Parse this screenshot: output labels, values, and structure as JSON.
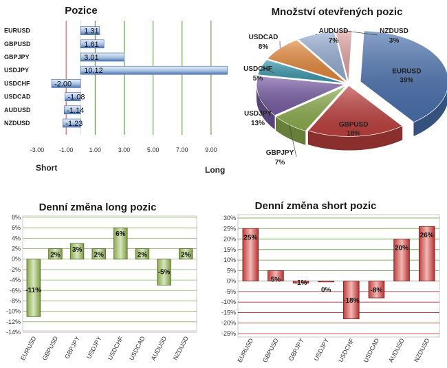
{
  "chart_data": [
    {
      "id": "positions",
      "type": "bar",
      "orientation": "horizontal",
      "title": "Pozice",
      "categories": [
        "EURUSD",
        "GBPUSD",
        "GBPJPY",
        "USDJPY",
        "USDCHF",
        "USDCAD",
        "AUDUSD",
        "NZDUSD"
      ],
      "values": [
        1.31,
        1.61,
        3.01,
        10.12,
        -2.0,
        -1.08,
        -1.14,
        -1.23
      ],
      "value_labels": [
        "1.31",
        "1.61",
        "3.01",
        "10.12",
        "-2.00",
        "-1.08",
        "-1.14",
        "-1.23"
      ],
      "xticks": [
        "-3.00",
        "-1.00",
        "1.00",
        "3.00",
        "5.00",
        "7.00",
        "9.00"
      ],
      "xlim": [
        -3,
        10
      ],
      "left_label": "Short",
      "right_label": "Long",
      "colors": {
        "bar": "#5b86bd",
        "bar_light": "#e8f0fb",
        "neg_line": "#c0504d",
        "pos_line": "#3c7a2a"
      }
    },
    {
      "id": "open_positions",
      "type": "pie",
      "title": "Množství otevřených pozic",
      "slices": [
        {
          "label": "EURUSD",
          "pct": "39%",
          "value": 39,
          "color": "#4a72b0"
        },
        {
          "label": "GBPUSD",
          "pct": "18%",
          "value": 18,
          "color": "#c0413f"
        },
        {
          "label": "GBPJPY",
          "pct": "7%",
          "value": 7,
          "color": "#8fb04e"
        },
        {
          "label": "USDJPY",
          "pct": "13%",
          "value": 13,
          "color": "#7a5ea6"
        },
        {
          "label": "USDCHF",
          "pct": "5%",
          "value": 5,
          "color": "#3c9bb0"
        },
        {
          "label": "USDCAD",
          "pct": "8%",
          "value": 8,
          "color": "#e88a3c"
        },
        {
          "label": "AUDUSD",
          "pct": "7%",
          "value": 7,
          "color": "#98b0d6"
        },
        {
          "label": "NZDUSD",
          "pct": "3%",
          "value": 3,
          "color": "#e6a5a5"
        }
      ]
    },
    {
      "id": "long_change",
      "type": "bar",
      "title": "Denní změna long pozic",
      "categories": [
        "EURUSD",
        "GBPUSD",
        "GBPJPY",
        "USDJPY",
        "USDCHF",
        "USDCAD",
        "AUDUSD",
        "NZDUSD"
      ],
      "values": [
        -11,
        2,
        3,
        2,
        6,
        2,
        -5,
        2
      ],
      "value_labels": [
        "-11%",
        "2%",
        "3%",
        "2%",
        "6%",
        "2%",
        "-5%",
        "2%"
      ],
      "yticks": [
        "8%",
        "6%",
        "4%",
        "2%",
        "0%",
        "-2%",
        "-4%",
        "-6%",
        "-8%",
        "-10%",
        "-12%",
        "-14%"
      ],
      "ylim": [
        -14,
        8
      ],
      "colors": {
        "bar": "#77943c",
        "bar_light": "#d7e4bc",
        "grid": "#4f8a2f",
        "frame": "#c8c8c8"
      }
    },
    {
      "id": "short_change",
      "type": "bar",
      "title": "Denní změna short pozic",
      "categories": [
        "EURUSD",
        "GBPUSD",
        "GBPJPY",
        "USDJPY",
        "USDCHF",
        "USDCAD",
        "AUDUSD",
        "NZDUSD"
      ],
      "values": [
        25,
        5,
        -1,
        0,
        -18,
        -8,
        20,
        26
      ],
      "value_labels": [
        "25%",
        "5%",
        "-1%",
        "0%",
        "-18%",
        "-8%",
        "20%",
        "26%"
      ],
      "yticks": [
        "30%",
        "25%",
        "20%",
        "15%",
        "10%",
        "5%",
        "0%",
        "-5%",
        "-10%",
        "-15%",
        "-20%",
        "-25%"
      ],
      "ylim": [
        -25,
        30
      ],
      "colors": {
        "bar": "#c0403c",
        "bar_light": "#f0b4b2",
        "grid_pos": "#4f8a2f",
        "grid_neg": "#a0282a",
        "frame": "#c8c8c8"
      }
    }
  ]
}
